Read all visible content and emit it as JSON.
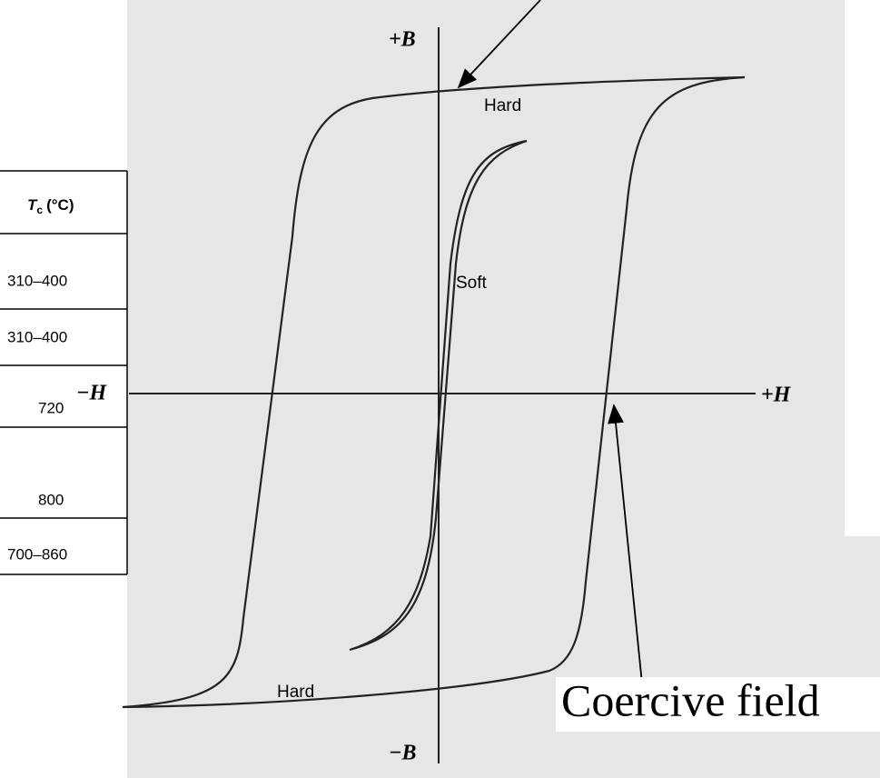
{
  "table": {
    "header": {
      "symbol": "T",
      "subscript": "c",
      "unit": "(°C)"
    },
    "rows": [
      "310–400",
      "310–400",
      "720",
      "800",
      "700–860"
    ]
  },
  "figure": {
    "axes": {
      "plus_b": "+B",
      "minus_b": "−B",
      "minus_h": "−H",
      "plus_h": "+H"
    },
    "labels": {
      "hard_top": "Hard",
      "soft": "Soft",
      "hard_bottom": "Hard"
    },
    "annotation": "Coercive field"
  }
}
